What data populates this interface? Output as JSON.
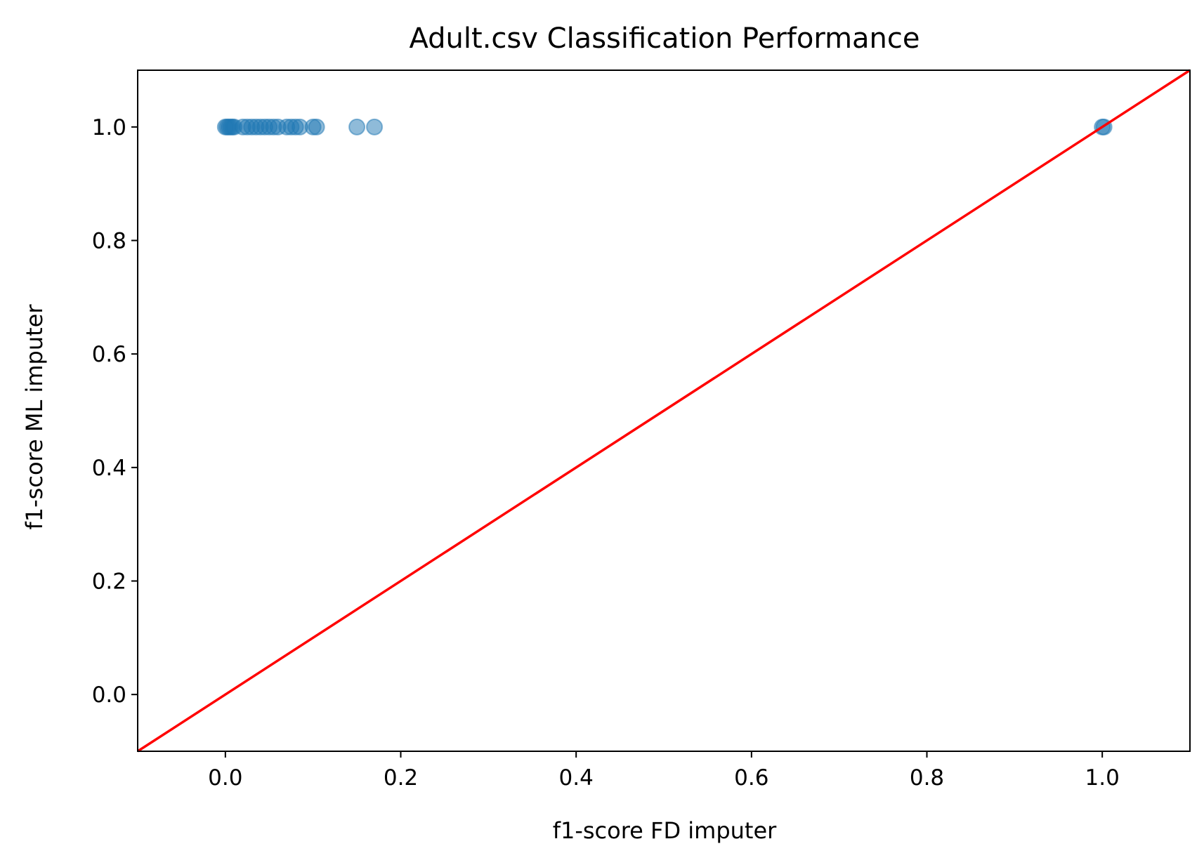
{
  "chart_data": {
    "type": "scatter",
    "title": "Adult.csv Classification Performance",
    "xlabel": "f1-score FD imputer",
    "ylabel": "f1-score ML imputer",
    "xlim": [
      -0.1,
      1.1
    ],
    "ylim": [
      -0.1,
      1.1
    ],
    "xticks": [
      0.0,
      0.2,
      0.4,
      0.6,
      0.8,
      1.0
    ],
    "xtick_labels": [
      "0.0",
      "0.2",
      "0.4",
      "0.6",
      "0.8",
      "1.0"
    ],
    "yticks": [
      0.0,
      0.2,
      0.4,
      0.6,
      0.8,
      1.0
    ],
    "ytick_labels": [
      "0.0",
      "0.2",
      "0.4",
      "0.6",
      "0.8",
      "1.0"
    ],
    "grid": false,
    "legend": "none",
    "series": [
      {
        "marker": "circle",
        "color": "#1f77b4",
        "alpha": 0.5,
        "points": [
          {
            "x": 0.0,
            "y": 1.0
          },
          {
            "x": 0.002,
            "y": 1.0
          },
          {
            "x": 0.004,
            "y": 1.0
          },
          {
            "x": 0.006,
            "y": 1.0
          },
          {
            "x": 0.008,
            "y": 1.0
          },
          {
            "x": 0.01,
            "y": 1.0
          },
          {
            "x": 0.02,
            "y": 1.0
          },
          {
            "x": 0.025,
            "y": 1.0
          },
          {
            "x": 0.03,
            "y": 1.0
          },
          {
            "x": 0.035,
            "y": 1.0
          },
          {
            "x": 0.04,
            "y": 1.0
          },
          {
            "x": 0.045,
            "y": 1.0
          },
          {
            "x": 0.05,
            "y": 1.0
          },
          {
            "x": 0.055,
            "y": 1.0
          },
          {
            "x": 0.06,
            "y": 1.0
          },
          {
            "x": 0.07,
            "y": 1.0
          },
          {
            "x": 0.075,
            "y": 1.0
          },
          {
            "x": 0.08,
            "y": 1.0
          },
          {
            "x": 0.085,
            "y": 1.0
          },
          {
            "x": 0.1,
            "y": 1.0
          },
          {
            "x": 0.104,
            "y": 1.0
          },
          {
            "x": 0.15,
            "y": 1.0
          },
          {
            "x": 0.17,
            "y": 1.0
          },
          {
            "x": 1.0,
            "y": 1.0
          },
          {
            "x": 1.002,
            "y": 1.0
          }
        ]
      }
    ],
    "reference_line": {
      "type": "identity",
      "color": "#ff0000",
      "from": [
        -0.1,
        -0.1
      ],
      "to": [
        1.1,
        1.1
      ]
    }
  }
}
